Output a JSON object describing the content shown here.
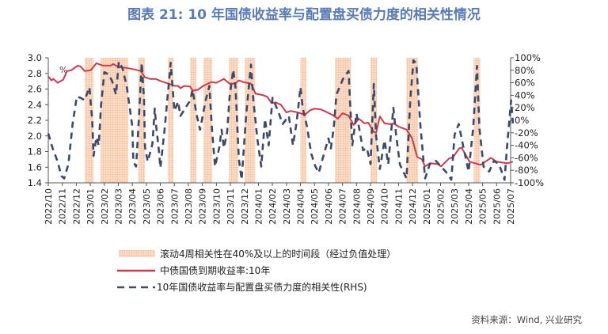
{
  "chart_data": {
    "type": "line",
    "title": "图表 21: 10 年国债收益率与配置盘买债力度的相关性情况",
    "y_unit_label": "%",
    "source": "资料来源：Wind, 兴业研究",
    "ylim_left": [
      1.4,
      3.0
    ],
    "yticks_left": [
      "3.0",
      "2.8",
      "2.6",
      "2.4",
      "2.2",
      "2.0",
      "1.8",
      "1.6",
      "1.4"
    ],
    "ylim_right": [
      -100,
      100
    ],
    "yticks_right": [
      "100%",
      "80%",
      "60%",
      "40%",
      "20%",
      "0%",
      "-20%",
      "-40%",
      "-60%",
      "-80%",
      "-100%"
    ],
    "xticks": [
      "2022/10",
      "2022/11",
      "2022/12",
      "2023/01",
      "2023/02",
      "2023/03",
      "2023/04",
      "2023/05",
      "2023/06",
      "2023/07",
      "2023/08",
      "2023/09",
      "2023/10",
      "2023/11",
      "2023/12",
      "2024/01",
      "2024/02",
      "2024/03",
      "2024/04",
      "2024/05",
      "2024/06",
      "2024/07",
      "2024/08",
      "2024/09",
      "2024/10",
      "2024/11",
      "2024/12",
      "2025/01",
      "2025/02",
      "2025/03",
      "2025/04",
      "2025/05",
      "2025/06",
      "2025/07"
    ],
    "legend": {
      "shade": "滚动4周相关性在40%及以上的时间段（经过负值处理）",
      "yield": "中债国债到期收益率:10年",
      "corr": "10年国债收益率与配置盘买债力度的相关性(RHS)"
    },
    "colors": {
      "yield": "#d0384b",
      "corr": "#3b4a6b",
      "shade": "#f7c9a6",
      "title": "#5a7bb5"
    },
    "shaded_periods": [
      [
        "2022-12-19",
        "2023-01-08"
      ],
      [
        "2023-01-23",
        "2023-03-22"
      ],
      [
        "2023-04-14",
        "2023-04-28"
      ],
      [
        "2023-06-17",
        "2023-06-29"
      ],
      [
        "2023-08-05",
        "2023-08-18"
      ],
      [
        "2023-09-03",
        "2023-09-22"
      ],
      [
        "2023-10-28",
        "2023-11-18"
      ],
      [
        "2023-12-02",
        "2023-12-24"
      ],
      [
        "2024-04-01",
        "2024-04-14"
      ],
      [
        "2024-06-15",
        "2024-07-19"
      ],
      [
        "2024-09-01",
        "2024-09-15"
      ],
      [
        "2024-11-18",
        "2024-12-13"
      ],
      [
        "2025-04-12",
        "2025-04-26"
      ]
    ],
    "series": [
      {
        "key": "yield",
        "axis": "left",
        "points": [
          [
            "2022-10-01",
            2.76
          ],
          [
            "2022-10-08",
            2.71
          ],
          [
            "2022-10-12",
            2.73
          ],
          [
            "2022-10-21",
            2.68
          ],
          [
            "2022-11-03",
            2.72
          ],
          [
            "2022-11-11",
            2.83
          ],
          [
            "2022-11-20",
            2.84
          ],
          [
            "2022-12-04",
            2.9
          ],
          [
            "2022-12-10",
            2.89
          ],
          [
            "2022-12-19",
            2.83
          ],
          [
            "2023-01-02",
            2.84
          ],
          [
            "2023-01-14",
            2.93
          ],
          [
            "2023-01-28",
            2.9
          ],
          [
            "2023-02-15",
            2.9
          ],
          [
            "2023-02-20",
            2.92
          ],
          [
            "2023-03-02",
            2.88
          ],
          [
            "2023-03-19",
            2.87
          ],
          [
            "2023-04-06",
            2.85
          ],
          [
            "2023-04-19",
            2.83
          ],
          [
            "2023-04-28",
            2.75
          ],
          [
            "2023-05-09",
            2.73
          ],
          [
            "2023-05-21",
            2.73
          ],
          [
            "2023-06-02",
            2.7
          ],
          [
            "2023-06-18",
            2.67
          ],
          [
            "2023-07-01",
            2.64
          ],
          [
            "2023-07-09",
            2.64
          ],
          [
            "2023-07-14",
            2.61
          ],
          [
            "2023-07-22",
            2.64
          ],
          [
            "2023-08-05",
            2.63
          ],
          [
            "2023-08-10",
            2.58
          ],
          [
            "2023-08-21",
            2.59
          ],
          [
            "2023-09-03",
            2.64
          ],
          [
            "2023-09-20",
            2.69
          ],
          [
            "2023-10-01",
            2.68
          ],
          [
            "2023-10-17",
            2.73
          ],
          [
            "2023-10-29",
            2.67
          ],
          [
            "2023-11-11",
            2.67
          ],
          [
            "2023-11-19",
            2.71
          ],
          [
            "2023-11-28",
            2.69
          ],
          [
            "2023-12-15",
            2.67
          ],
          [
            "2023-12-25",
            2.54
          ],
          [
            "2024-01-12",
            2.52
          ],
          [
            "2024-01-20",
            2.5
          ],
          [
            "2024-01-29",
            2.42
          ],
          [
            "2024-02-07",
            2.43
          ],
          [
            "2024-02-19",
            2.4
          ],
          [
            "2024-03-01",
            2.3
          ],
          [
            "2024-03-10",
            2.32
          ],
          [
            "2024-03-26",
            2.3
          ],
          [
            "2024-04-10",
            2.27
          ],
          [
            "2024-04-22",
            2.33
          ],
          [
            "2024-05-02",
            2.35
          ],
          [
            "2024-05-14",
            2.34
          ],
          [
            "2024-05-22",
            2.32
          ],
          [
            "2024-06-09",
            2.27
          ],
          [
            "2024-06-21",
            2.22
          ],
          [
            "2024-07-01",
            2.29
          ],
          [
            "2024-07-14",
            2.26
          ],
          [
            "2024-07-25",
            2.14
          ],
          [
            "2024-08-06",
            2.22
          ],
          [
            "2024-08-18",
            2.16
          ],
          [
            "2024-08-26",
            2.17
          ],
          [
            "2024-09-08",
            2.05
          ],
          [
            "2024-09-13",
            2.04
          ],
          [
            "2024-09-21",
            2.25
          ],
          [
            "2024-10-01",
            2.16
          ],
          [
            "2024-10-14",
            2.15
          ],
          [
            "2024-10-20",
            2.16
          ],
          [
            "2024-11-01",
            2.12
          ],
          [
            "2024-11-18",
            2.08
          ],
          [
            "2024-11-30",
            1.97
          ],
          [
            "2024-12-11",
            1.73
          ],
          [
            "2024-12-21",
            1.7
          ],
          [
            "2024-12-28",
            1.61
          ],
          [
            "2025-01-08",
            1.65
          ],
          [
            "2025-01-25",
            1.64
          ],
          [
            "2025-02-02",
            1.61
          ],
          [
            "2025-02-19",
            1.71
          ],
          [
            "2025-02-28",
            1.73
          ],
          [
            "2025-03-11",
            1.84
          ],
          [
            "2025-03-16",
            1.85
          ],
          [
            "2025-04-03",
            1.67
          ],
          [
            "2025-04-15",
            1.65
          ],
          [
            "2025-04-27",
            1.63
          ],
          [
            "2025-05-19",
            1.72
          ],
          [
            "2025-06-01",
            1.67
          ],
          [
            "2025-06-24",
            1.65
          ],
          [
            "2025-07-06",
            1.67
          ]
        ]
      },
      {
        "key": "corr",
        "axis": "right",
        "points": [
          [
            "2022-10-01",
            -21
          ],
          [
            "2022-10-10",
            -44
          ],
          [
            "2022-10-21",
            -66
          ],
          [
            "2022-10-29",
            -89
          ],
          [
            "2022-11-05",
            -93
          ],
          [
            "2022-11-14",
            -70
          ],
          [
            "2022-11-23",
            -6
          ],
          [
            "2022-12-02",
            38
          ],
          [
            "2022-12-10",
            36
          ],
          [
            "2022-12-19",
            32
          ],
          [
            "2022-12-29",
            53
          ],
          [
            "2023-01-05",
            0
          ],
          [
            "2023-01-08",
            -57
          ],
          [
            "2023-01-14",
            -27
          ],
          [
            "2023-01-19",
            -40
          ],
          [
            "2023-01-24",
            25
          ],
          [
            "2023-02-01",
            77
          ],
          [
            "2023-02-11",
            73
          ],
          [
            "2023-02-18",
            62
          ],
          [
            "2023-02-26",
            41
          ],
          [
            "2023-03-02",
            94
          ],
          [
            "2023-03-10",
            83
          ],
          [
            "2023-03-19",
            54
          ],
          [
            "2023-04-01",
            -10
          ],
          [
            "2023-04-03",
            -66
          ],
          [
            "2023-04-09",
            -74
          ],
          [
            "2023-04-14",
            -10
          ],
          [
            "2023-04-21",
            92
          ],
          [
            "2023-04-26",
            34
          ],
          [
            "2023-04-28",
            -42
          ],
          [
            "2023-05-04",
            -66
          ],
          [
            "2023-05-14",
            -38
          ],
          [
            "2023-05-19",
            19
          ],
          [
            "2023-05-22",
            -10
          ],
          [
            "2023-05-27",
            -42
          ],
          [
            "2023-06-01",
            -76
          ],
          [
            "2023-06-10",
            -15
          ],
          [
            "2023-06-23",
            92
          ],
          [
            "2023-07-01",
            15
          ],
          [
            "2023-07-09",
            30
          ],
          [
            "2023-07-14",
            7
          ],
          [
            "2023-08-05",
            32
          ],
          [
            "2023-08-10",
            49
          ],
          [
            "2023-08-18",
            11
          ],
          [
            "2023-08-26",
            -15
          ],
          [
            "2023-09-08",
            32
          ],
          [
            "2023-09-16",
            55
          ],
          [
            "2023-09-21",
            -10
          ],
          [
            "2023-09-28",
            -74
          ],
          [
            "2023-10-07",
            -44
          ],
          [
            "2023-10-12",
            -15
          ],
          [
            "2023-10-17",
            -44
          ],
          [
            "2023-10-24",
            -19
          ],
          [
            "2023-10-29",
            36
          ],
          [
            "2023-11-07",
            81
          ],
          [
            "2023-11-12",
            53
          ],
          [
            "2023-11-19",
            -62
          ],
          [
            "2023-11-25",
            -95
          ],
          [
            "2023-12-05",
            11
          ],
          [
            "2023-12-15",
            89
          ],
          [
            "2023-12-20",
            32
          ],
          [
            "2023-12-29",
            -32
          ],
          [
            "2024-01-07",
            -74
          ],
          [
            "2024-01-15",
            2
          ],
          [
            "2024-01-23",
            -40
          ],
          [
            "2024-02-01",
            36
          ],
          [
            "2024-02-13",
            15
          ],
          [
            "2024-02-23",
            -6
          ],
          [
            "2024-03-06",
            7
          ],
          [
            "2024-03-15",
            -40
          ],
          [
            "2024-03-23",
            -2
          ],
          [
            "2024-04-01",
            53
          ],
          [
            "2024-04-06",
            19
          ],
          [
            "2024-04-15",
            -10
          ],
          [
            "2024-04-24",
            -53
          ],
          [
            "2024-05-02",
            -72
          ],
          [
            "2024-05-10",
            -84
          ],
          [
            "2024-05-22",
            -52
          ],
          [
            "2024-05-31",
            -29
          ],
          [
            "2024-06-06",
            -45
          ],
          [
            "2024-06-12",
            -14
          ],
          [
            "2024-06-18",
            41
          ],
          [
            "2024-07-02",
            66
          ],
          [
            "2024-07-14",
            79
          ],
          [
            "2024-07-17",
            32
          ],
          [
            "2024-07-22",
            -40
          ],
          [
            "2024-08-01",
            11
          ],
          [
            "2024-08-06",
            -10
          ],
          [
            "2024-08-15",
            -48
          ],
          [
            "2024-08-23",
            -44
          ],
          [
            "2024-09-01",
            -70
          ],
          [
            "2024-09-08",
            58
          ],
          [
            "2024-09-13",
            -25
          ],
          [
            "2024-09-21",
            -78
          ],
          [
            "2024-10-01",
            -32
          ],
          [
            "2024-10-09",
            -70
          ],
          [
            "2024-10-20",
            20
          ],
          [
            "2024-10-26",
            -25
          ],
          [
            "2024-11-04",
            -71
          ],
          [
            "2024-11-18",
            -93
          ],
          [
            "2024-11-26",
            32
          ],
          [
            "2024-12-03",
            96
          ],
          [
            "2024-12-09",
            91
          ],
          [
            "2024-12-18",
            -10
          ],
          [
            "2024-12-28",
            -93
          ],
          [
            "2025-01-08",
            -70
          ],
          [
            "2025-01-21",
            -65
          ],
          [
            "2025-02-02",
            -74
          ],
          [
            "2025-02-12",
            -82
          ],
          [
            "2025-02-24",
            -95
          ],
          [
            "2025-03-01",
            -23
          ],
          [
            "2025-03-10",
            -6
          ],
          [
            "2025-03-18",
            -36
          ],
          [
            "2025-04-01",
            -82
          ],
          [
            "2025-04-11",
            -11
          ],
          [
            "2025-04-19",
            87
          ],
          [
            "2025-04-24",
            -11
          ],
          [
            "2025-05-03",
            -74
          ],
          [
            "2025-05-15",
            -82
          ],
          [
            "2025-05-25",
            -65
          ],
          [
            "2025-06-06",
            -70
          ],
          [
            "2025-06-18",
            -95
          ],
          [
            "2025-06-24",
            -36
          ],
          [
            "2025-07-02",
            32
          ],
          [
            "2025-07-06",
            -5
          ]
        ]
      }
    ]
  }
}
